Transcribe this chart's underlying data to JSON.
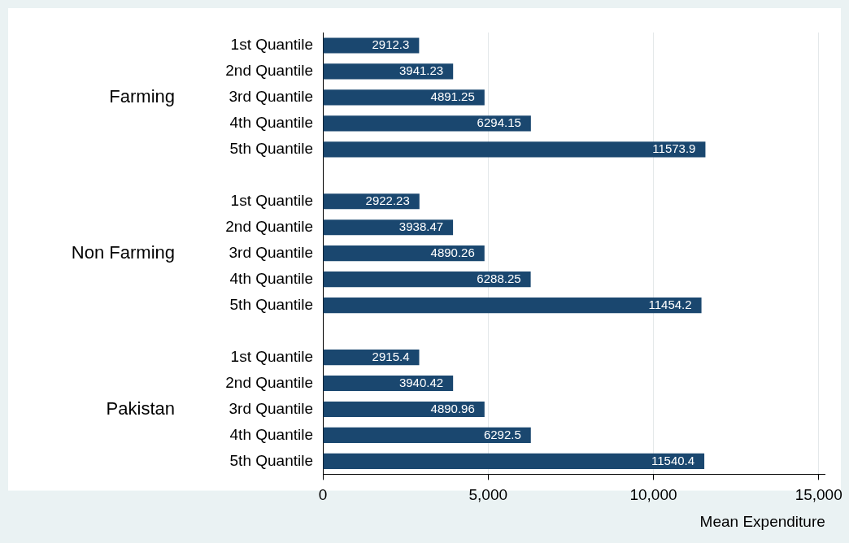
{
  "chart_data": {
    "type": "bar",
    "orientation": "horizontal",
    "categories": [
      "1st Quantile",
      "2nd Quantile",
      "3rd Quantile",
      "4th Quantile",
      "5th Quantile",
      null,
      "1st Quantile",
      "2nd Quantile",
      "3rd Quantile",
      "4th Quantile",
      "5th Quantile",
      null,
      "1st Quantile",
      "2nd Quantile",
      "3rd Quantile",
      "4th Quantile",
      "5th Quantile"
    ],
    "values": [
      2912.3,
      3941.23,
      4891.25,
      6294.15,
      11573.9,
      null,
      2922.23,
      3938.47,
      4890.26,
      6288.25,
      11454.2,
      null,
      2915.4,
      3940.42,
      4890.96,
      6292.5,
      11540.4
    ],
    "color": "#1a476f",
    "xlabel": "Mean Expenditure",
    "xlim": [
      0,
      15200
    ],
    "xticks": [
      {
        "value": 0,
        "label": "0"
      },
      {
        "value": 5000,
        "label": "5,000"
      },
      {
        "value": 10000,
        "label": "10,000"
      },
      {
        "value": 15000,
        "label": "15,000"
      }
    ],
    "grid": "x",
    "data_labels": true,
    "legend": false,
    "annotations": [
      "Farming",
      "Non Farming",
      "Pakistan"
    ]
  }
}
